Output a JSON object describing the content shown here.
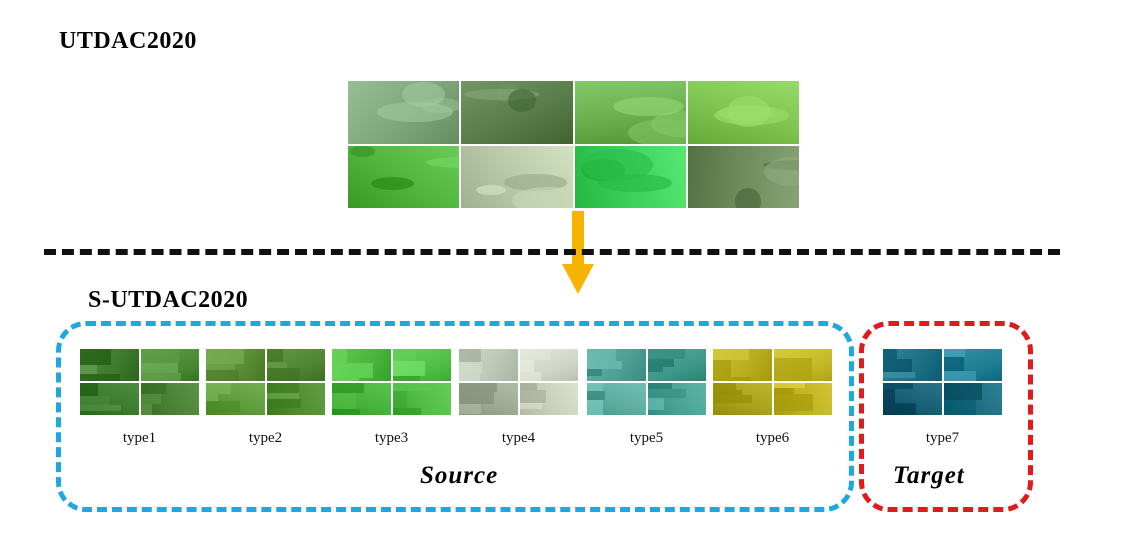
{
  "header": {
    "title": "UTDAC2020"
  },
  "section": {
    "title": "S-UTDAC2020"
  },
  "source": {
    "label": "Source",
    "types": [
      {
        "label": "type1",
        "colors": [
          "#3d7a2e",
          "#4b8a35",
          "#3a7a2c",
          "#477f33"
        ]
      },
      {
        "label": "type2",
        "colors": [
          "#5a8d35",
          "#4f8433",
          "#5e9b3a",
          "#4d8a30"
        ]
      },
      {
        "label": "type3",
        "colors": [
          "#49b53c",
          "#51bf45",
          "#46b13a",
          "#4fbb43"
        ]
      },
      {
        "label": "type4",
        "colors": [
          "#bcc7b4",
          "#d0d6c7",
          "#9da891",
          "#c6ceba"
        ]
      },
      {
        "label": "type5",
        "colors": [
          "#4e9f93",
          "#3f9789",
          "#5cada0",
          "#48a092"
        ]
      },
      {
        "label": "type6",
        "colors": [
          "#b7ad1e",
          "#c3b825",
          "#a9a11a",
          "#bdb120"
        ]
      }
    ]
  },
  "target": {
    "label": "Target",
    "types": [
      {
        "label": "type7",
        "colors": [
          "#1d6f86",
          "#1f7d94",
          "#165f74",
          "#1a6b80"
        ]
      }
    ]
  },
  "top_images": {
    "colors": [
      "#7ea67a",
      "#587d4a",
      "#6bb04e",
      "#7ec24f",
      "#4fb33c",
      "#b9c9a8",
      "#3ecf5a",
      "#6c8a5c"
    ]
  },
  "colors": {
    "source_border": "#1ea8e0",
    "target_border": "#e01b1b",
    "arrow": "#f6b300"
  }
}
